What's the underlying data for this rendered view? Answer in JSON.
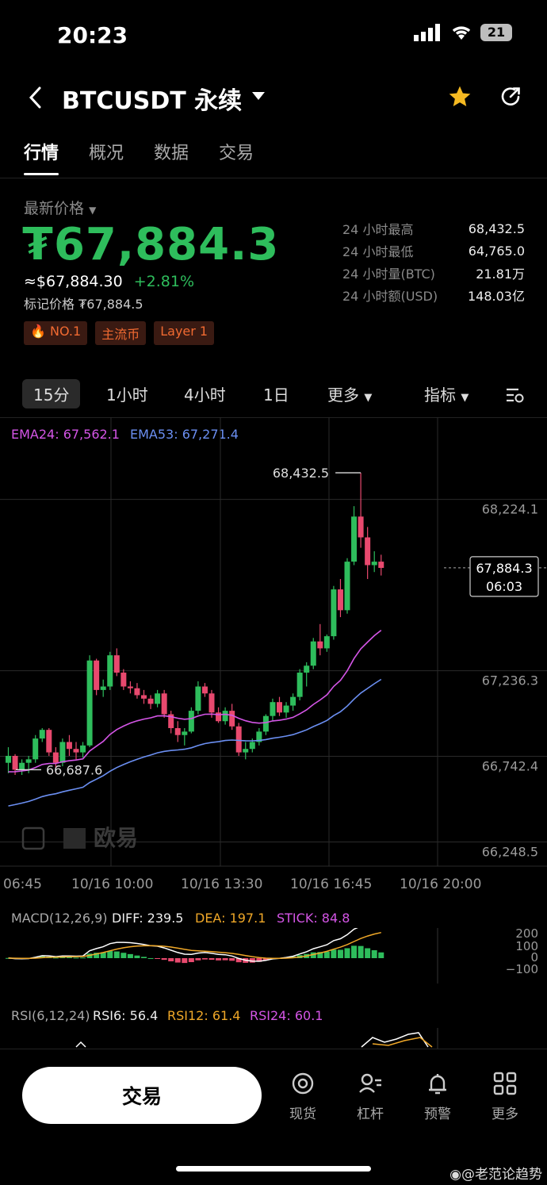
{
  "status_bar": {
    "time": "20:23",
    "battery": "21"
  },
  "header": {
    "title": "BTCUSDT 永续"
  },
  "tabs": [
    {
      "label": "行情",
      "active": true
    },
    {
      "label": "概况",
      "active": false
    },
    {
      "label": "数据",
      "active": false
    },
    {
      "label": "交易",
      "active": false
    }
  ],
  "ticker": {
    "price_label": "最新价格",
    "last_price": "₮67,884.3",
    "usd_price": "≈$67,884.30",
    "change": "+2.81%",
    "mark_price": "标记价格 ₮67,884.5",
    "badges": [
      "NO.1",
      "主流币",
      "Layer 1"
    ],
    "stats": [
      {
        "label": "24 小时最高",
        "value": "68,432.5"
      },
      {
        "label": "24 小时最低",
        "value": "64,765.0"
      },
      {
        "label": "24 小时量(BTC)",
        "value": "21.81万"
      },
      {
        "label": "24 小时额(USD)",
        "value": "148.03亿"
      }
    ]
  },
  "timeframes": {
    "items": [
      "15分",
      "1小时",
      "4小时",
      "1日"
    ],
    "active": "15分",
    "more": "更多",
    "indicators": "指标"
  },
  "chart_data": {
    "type": "candlestick",
    "indicators": {
      "ema24": "EMA24: 67,562.1",
      "ema53": "EMA53: 67,271.4"
    },
    "y_ticks": [
      "68,224.1",
      "67,236.3",
      "66,742.4",
      "66,248.5"
    ],
    "x_ticks": [
      "06:45",
      "10/16 10:00",
      "10/16 13:30",
      "10/16 16:45",
      "10/16 20:00"
    ],
    "high_marker": "68,432.5",
    "low_marker": "66,687.6",
    "current_price": "67,884.3",
    "countdown": "06:03",
    "watermark": "欧易",
    "up_color": "#2ebd5c",
    "down_color": "#e8496e",
    "ema24_color": "#d455e6",
    "ema53_color": "#6b8ff2",
    "candles": [
      [
        66760,
        66850,
        66700,
        66800
      ],
      [
        66800,
        66810,
        66690,
        66720
      ],
      [
        66720,
        66780,
        66690,
        66760
      ],
      [
        66760,
        66800,
        66700,
        66780
      ],
      [
        66780,
        66920,
        66760,
        66900
      ],
      [
        66900,
        66960,
        66880,
        66950
      ],
      [
        66950,
        66960,
        66800,
        66820
      ],
      [
        66820,
        66850,
        66700,
        66760
      ],
      [
        66760,
        66900,
        66740,
        66880
      ],
      [
        66880,
        66920,
        66800,
        66840
      ],
      [
        66840,
        66880,
        66780,
        66820
      ],
      [
        66820,
        66880,
        66790,
        66860
      ],
      [
        66860,
        67380,
        66850,
        67350
      ],
      [
        67350,
        67360,
        67150,
        67180
      ],
      [
        67180,
        67240,
        67140,
        67200
      ],
      [
        67200,
        67400,
        67180,
        67380
      ],
      [
        67380,
        67420,
        67260,
        67280
      ],
      [
        67280,
        67300,
        67180,
        67200
      ],
      [
        67200,
        67230,
        67160,
        67190
      ],
      [
        67190,
        67220,
        67130,
        67150
      ],
      [
        67150,
        67180,
        67100,
        67130
      ],
      [
        67130,
        67150,
        67070,
        67100
      ],
      [
        67100,
        67180,
        67080,
        67160
      ],
      [
        67160,
        67180,
        67020,
        67040
      ],
      [
        67040,
        67060,
        66930,
        66960
      ],
      [
        66960,
        67000,
        66880,
        66920
      ],
      [
        66920,
        66960,
        66860,
        66940
      ],
      [
        66940,
        67080,
        66930,
        67060
      ],
      [
        67060,
        67230,
        67040,
        67200
      ],
      [
        67200,
        67220,
        67140,
        67160
      ],
      [
        67160,
        67180,
        67020,
        67050
      ],
      [
        67050,
        67080,
        66990,
        67000
      ],
      [
        67000,
        67080,
        66980,
        67060
      ],
      [
        67060,
        67100,
        66950,
        66970
      ],
      [
        66970,
        66990,
        66800,
        66820
      ],
      [
        66820,
        66880,
        66780,
        66840
      ],
      [
        66840,
        66900,
        66820,
        66880
      ],
      [
        66880,
        66960,
        66860,
        66940
      ],
      [
        66940,
        67040,
        66920,
        67030
      ],
      [
        67030,
        67130,
        67000,
        67110
      ],
      [
        67110,
        67140,
        67030,
        67050
      ],
      [
        67050,
        67110,
        67020,
        67090
      ],
      [
        67090,
        67160,
        67060,
        67140
      ],
      [
        67140,
        67300,
        67120,
        67280
      ],
      [
        67280,
        67340,
        67200,
        67320
      ],
      [
        67320,
        67480,
        67300,
        67460
      ],
      [
        67460,
        67560,
        67380,
        67420
      ],
      [
        67420,
        67500,
        67400,
        67490
      ],
      [
        67490,
        67780,
        67470,
        67760
      ],
      [
        67760,
        67820,
        67600,
        67640
      ],
      [
        67640,
        67940,
        67620,
        67920
      ],
      [
        67920,
        68240,
        67900,
        68180
      ],
      [
        68180,
        68432,
        68000,
        68060
      ],
      [
        68060,
        68120,
        67820,
        67900
      ],
      [
        67900,
        67980,
        67860,
        67920
      ],
      [
        67920,
        67960,
        67840,
        67884
      ]
    ],
    "macd": {
      "label": "MACD(12,26,9)",
      "diff": "DIFF: 239.5",
      "dea": "DEA: 197.1",
      "stick": "STICK: 84.8",
      "ticks": [
        "200",
        "100",
        "0",
        "−100"
      ]
    },
    "rsi": {
      "label": "RSI(6,12,24)",
      "rsi6": "RSI6: 56.4",
      "rsi12": "RSI12: 61.4",
      "rsi24": "RSI24: 60.1"
    }
  },
  "bottom_nav": {
    "trade_label": "交易",
    "items": [
      {
        "label": "现货"
      },
      {
        "label": "杠杆"
      },
      {
        "label": "预警"
      },
      {
        "label": "更多"
      }
    ]
  },
  "watermark_text": "@老范论趋势"
}
